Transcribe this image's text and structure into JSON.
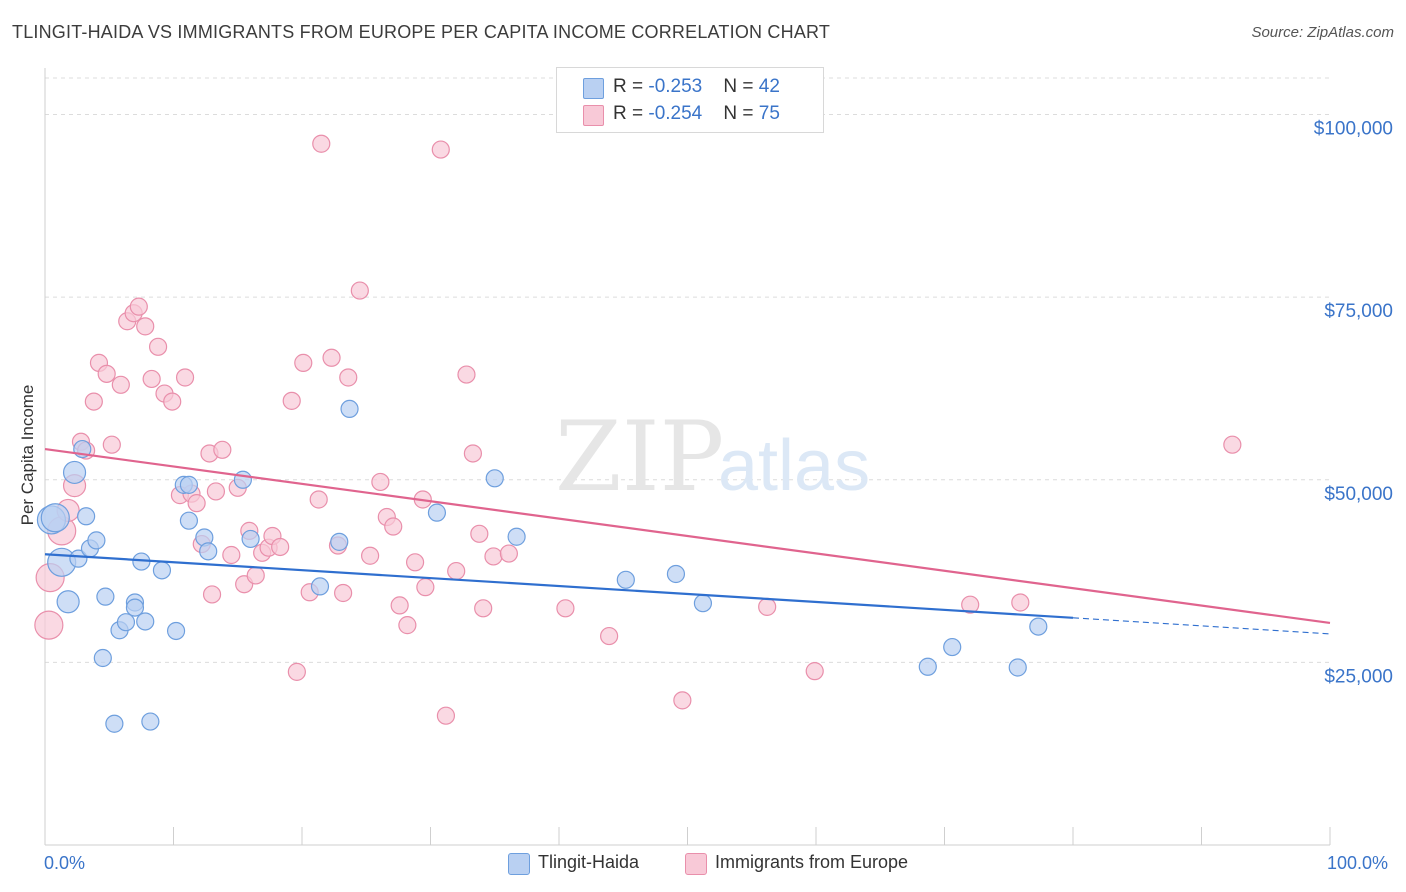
{
  "title": "TLINGIT-HAIDA VS IMMIGRANTS FROM EUROPE PER CAPITA INCOME CORRELATION CHART",
  "source": "Source: ZipAtlas.com",
  "watermark": {
    "zip": "ZIP",
    "atlas": "atlas"
  },
  "legend": {
    "rows": [
      {
        "r_label": "R = ",
        "r_value": "-0.253",
        "n_label": "N = ",
        "n_value": "42",
        "color": "#a9c6ef"
      },
      {
        "r_label": "R = ",
        "r_value": "-0.254",
        "n_label": "N = ",
        "n_value": "75",
        "color": "#f6b8cb"
      }
    ]
  },
  "colors": {
    "blue_fill": "#b9d0f2",
    "blue_stroke": "#6e9fde",
    "blue_line": "#2f6fcf",
    "pink_fill": "#f8c9d7",
    "pink_stroke": "#e98fab",
    "pink_line": "#e0648e",
    "tick_label": "#3a74c9",
    "grid": "#dcdcdc"
  },
  "chart_data": {
    "type": "scatter",
    "title": "TLINGIT-HAIDA VS IMMIGRANTS FROM EUROPE PER CAPITA INCOME CORRELATION CHART",
    "xlabel": "",
    "ylabel": "Per Capita Income",
    "xlim": [
      0,
      100
    ],
    "ylim": [
      0,
      105000
    ],
    "x_tick_labels": [
      "0.0%",
      "100.0%"
    ],
    "y_ticks": [
      25000,
      50000,
      75000,
      100000
    ],
    "y_tick_labels": [
      "$25,000",
      "$50,000",
      "$75,000",
      "$100,000"
    ],
    "grid": true,
    "legend_position": "top-center",
    "series": [
      {
        "name": "Tlingit-Haida",
        "color": "#6e9fde",
        "points": [
          [
            0.5,
            44500
          ],
          [
            1.3,
            38700
          ],
          [
            1.8,
            33300
          ],
          [
            2.3,
            51000
          ],
          [
            2.6,
            39200
          ],
          [
            2.9,
            54200
          ],
          [
            3.2,
            45000
          ],
          [
            3.5,
            40600
          ],
          [
            4.0,
            41700
          ],
          [
            4.5,
            25600
          ],
          [
            4.7,
            34000
          ],
          [
            5.4,
            16600
          ],
          [
            5.8,
            29400
          ],
          [
            6.3,
            30500
          ],
          [
            7.0,
            33200
          ],
          [
            7.0,
            32500
          ],
          [
            7.5,
            38800
          ],
          [
            7.8,
            30600
          ],
          [
            8.2,
            16900
          ],
          [
            9.1,
            37600
          ],
          [
            10.2,
            29300
          ],
          [
            10.8,
            49300
          ],
          [
            11.2,
            49300
          ],
          [
            11.2,
            44400
          ],
          [
            12.4,
            42100
          ],
          [
            12.7,
            40200
          ],
          [
            15.4,
            50000
          ],
          [
            16.0,
            41900
          ],
          [
            21.4,
            35400
          ],
          [
            22.9,
            41500
          ],
          [
            23.7,
            59700
          ],
          [
            30.5,
            45500
          ],
          [
            35.0,
            50200
          ],
          [
            36.7,
            42200
          ],
          [
            45.2,
            36300
          ],
          [
            49.1,
            37100
          ],
          [
            51.2,
            33100
          ],
          [
            68.7,
            24400
          ],
          [
            70.6,
            27100
          ],
          [
            75.7,
            24300
          ],
          [
            77.3,
            29900
          ],
          [
            0.8,
            44800
          ]
        ],
        "trend": {
          "x": [
            0,
            80
          ],
          "y": [
            39800,
            31100
          ]
        },
        "trend_dashed": {
          "x": [
            80,
            100
          ],
          "y": [
            31100,
            28900
          ]
        }
      },
      {
        "name": "Immigrants from Europe",
        "color": "#e98fab",
        "points": [
          [
            0.3,
            30100
          ],
          [
            0.4,
            36600
          ],
          [
            1.3,
            43000
          ],
          [
            1.8,
            45800
          ],
          [
            2.3,
            49200
          ],
          [
            2.8,
            55200
          ],
          [
            3.2,
            54000
          ],
          [
            3.8,
            60700
          ],
          [
            4.2,
            66000
          ],
          [
            4.8,
            64500
          ],
          [
            5.2,
            54800
          ],
          [
            5.9,
            63000
          ],
          [
            6.4,
            71700
          ],
          [
            6.9,
            72800
          ],
          [
            7.3,
            73700
          ],
          [
            7.8,
            71000
          ],
          [
            8.3,
            63800
          ],
          [
            8.8,
            68200
          ],
          [
            9.3,
            61800
          ],
          [
            9.9,
            60700
          ],
          [
            10.5,
            47900
          ],
          [
            10.9,
            64000
          ],
          [
            11.4,
            48100
          ],
          [
            11.8,
            46800
          ],
          [
            12.2,
            41200
          ],
          [
            12.8,
            53600
          ],
          [
            13.0,
            34300
          ],
          [
            13.3,
            48400
          ],
          [
            13.8,
            54100
          ],
          [
            14.5,
            39700
          ],
          [
            15.0,
            48900
          ],
          [
            15.5,
            35700
          ],
          [
            15.9,
            43000
          ],
          [
            16.4,
            36900
          ],
          [
            16.9,
            40000
          ],
          [
            17.4,
            40700
          ],
          [
            17.7,
            42300
          ],
          [
            18.3,
            40800
          ],
          [
            19.2,
            60800
          ],
          [
            19.6,
            23700
          ],
          [
            20.1,
            66000
          ],
          [
            20.6,
            34600
          ],
          [
            21.3,
            47300
          ],
          [
            21.5,
            96000
          ],
          [
            22.3,
            66700
          ],
          [
            22.8,
            41000
          ],
          [
            23.2,
            34500
          ],
          [
            23.6,
            64000
          ],
          [
            24.5,
            75900
          ],
          [
            25.3,
            39600
          ],
          [
            26.1,
            49700
          ],
          [
            26.6,
            44900
          ],
          [
            27.1,
            43600
          ],
          [
            27.6,
            32800
          ],
          [
            28.2,
            30100
          ],
          [
            28.8,
            38700
          ],
          [
            29.4,
            47300
          ],
          [
            29.6,
            35300
          ],
          [
            30.8,
            95200
          ],
          [
            31.2,
            17700
          ],
          [
            32.0,
            37500
          ],
          [
            32.8,
            64400
          ],
          [
            33.3,
            53600
          ],
          [
            33.8,
            42600
          ],
          [
            34.1,
            32400
          ],
          [
            34.9,
            39500
          ],
          [
            36.1,
            39900
          ],
          [
            40.5,
            32400
          ],
          [
            43.9,
            28600
          ],
          [
            49.6,
            19800
          ],
          [
            56.2,
            32600
          ],
          [
            59.9,
            23800
          ],
          [
            72.0,
            32900
          ],
          [
            75.9,
            33200
          ],
          [
            92.4,
            54800
          ]
        ],
        "trend": {
          "x": [
            0,
            100
          ],
          "y": [
            54200,
            30400
          ]
        }
      }
    ]
  },
  "bottom_legend": [
    "Tlingit-Haida",
    "Immigrants from Europe"
  ]
}
